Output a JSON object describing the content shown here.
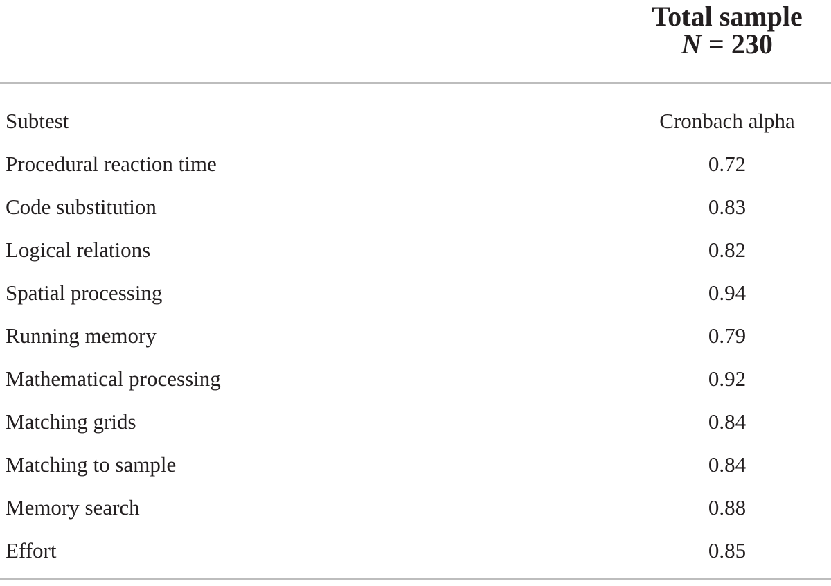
{
  "table": {
    "group_header": {
      "line1": "Total sample",
      "n_label": "N",
      "n_value": "= 230"
    },
    "columns": [
      "Subtest",
      "Cronbach alpha"
    ],
    "rows": [
      {
        "subtest": "Procedural reaction time",
        "alpha": "0.72"
      },
      {
        "subtest": "Code substitution",
        "alpha": "0.83"
      },
      {
        "subtest": "Logical relations",
        "alpha": "0.82"
      },
      {
        "subtest": "Spatial processing",
        "alpha": "0.94"
      },
      {
        "subtest": "Running memory",
        "alpha": "0.79"
      },
      {
        "subtest": "Mathematical processing",
        "alpha": "0.92"
      },
      {
        "subtest": "Matching grids",
        "alpha": "0.84"
      },
      {
        "subtest": "Matching to sample",
        "alpha": "0.84"
      },
      {
        "subtest": "Memory search",
        "alpha": "0.88"
      },
      {
        "subtest": "Effort",
        "alpha": "0.85"
      }
    ]
  }
}
